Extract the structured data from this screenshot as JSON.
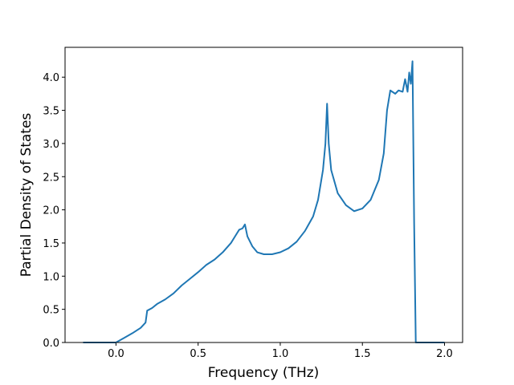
{
  "chart_data": {
    "type": "line",
    "xlabel": "Frequency (THz)",
    "ylabel": "Partial Density of States",
    "x": [
      -0.2,
      0.0,
      0.05,
      0.1,
      0.15,
      0.18,
      0.19,
      0.22,
      0.25,
      0.3,
      0.35,
      0.4,
      0.45,
      0.5,
      0.55,
      0.6,
      0.65,
      0.7,
      0.73,
      0.75,
      0.77,
      0.785,
      0.8,
      0.83,
      0.86,
      0.9,
      0.95,
      1.0,
      1.05,
      1.1,
      1.15,
      1.2,
      1.23,
      1.26,
      1.275,
      1.285,
      1.295,
      1.31,
      1.35,
      1.4,
      1.45,
      1.5,
      1.55,
      1.6,
      1.63,
      1.65,
      1.67,
      1.7,
      1.72,
      1.745,
      1.76,
      1.775,
      1.785,
      1.795,
      1.805,
      1.815,
      1.825,
      2.0
    ],
    "series": [
      {
        "color": "#1f77b4",
        "values": [
          0,
          0,
          0.07,
          0.14,
          0.22,
          0.3,
          0.48,
          0.52,
          0.58,
          0.65,
          0.74,
          0.86,
          0.96,
          1.06,
          1.17,
          1.25,
          1.36,
          1.5,
          1.62,
          1.7,
          1.72,
          1.78,
          1.6,
          1.45,
          1.36,
          1.33,
          1.33,
          1.36,
          1.42,
          1.52,
          1.68,
          1.9,
          2.15,
          2.6,
          3.0,
          3.6,
          3.0,
          2.6,
          2.25,
          2.07,
          1.98,
          2.02,
          2.15,
          2.45,
          2.85,
          3.5,
          3.8,
          3.75,
          3.8,
          3.78,
          3.97,
          3.78,
          4.07,
          3.9,
          4.24,
          1.8,
          0,
          0
        ]
      }
    ],
    "xlim": [
      -0.31,
      2.11
    ],
    "ylim": [
      0,
      4.45
    ],
    "xticks": [
      {
        "value": 0,
        "label": "0.0"
      },
      0.5,
      {
        "value": 1,
        "label": "1.0"
      },
      1.5,
      {
        "value": 2,
        "label": "2.0"
      }
    ],
    "yticks": [
      {
        "value": 0,
        "label": "0.0"
      },
      0.5,
      {
        "value": 1,
        "label": "1.0"
      },
      1.5,
      {
        "value": 2,
        "label": "2.0"
      },
      2.5,
      {
        "value": 3,
        "label": "3.0"
      },
      3.5,
      {
        "value": 4,
        "label": "4.0"
      }
    ]
  }
}
